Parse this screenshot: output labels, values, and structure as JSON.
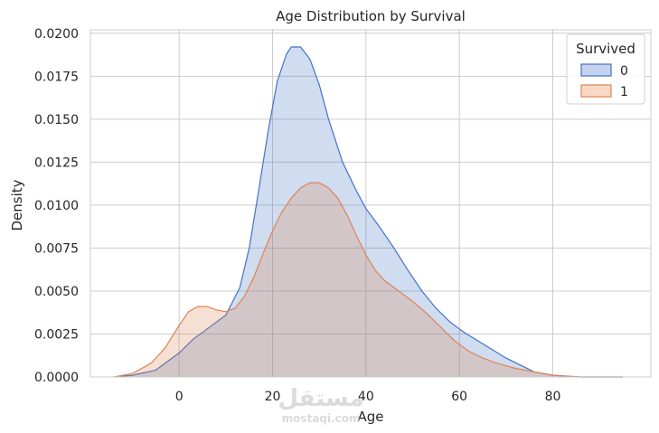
{
  "chart_data": {
    "type": "area",
    "title": "Age Distribution by Survival",
    "xlabel": "Age",
    "ylabel": "Density",
    "xlim": [
      -19,
      101
    ],
    "ylim": [
      0,
      0.0202
    ],
    "x_ticks": [
      0,
      20,
      40,
      60,
      80
    ],
    "y_ticks": [
      0.0,
      0.0025,
      0.005,
      0.0075,
      0.01,
      0.0125,
      0.015,
      0.0175,
      0.02
    ],
    "y_tick_labels": [
      "0.0000",
      "0.0025",
      "0.0050",
      "0.0075",
      "0.0100",
      "0.0125",
      "0.0150",
      "0.0175",
      "0.0200"
    ],
    "grid": true,
    "legend": {
      "title": "Survived",
      "placement": "top-right"
    },
    "series": [
      {
        "name": "0",
        "color": "#4472c4",
        "fill": "#c4d2ee",
        "points": [
          [
            -14,
            0.0
          ],
          [
            -10,
            0.0001
          ],
          [
            -5,
            0.0004
          ],
          [
            0,
            0.0014
          ],
          [
            3,
            0.0022
          ],
          [
            6,
            0.0028
          ],
          [
            10,
            0.0036
          ],
          [
            13,
            0.0052
          ],
          [
            15,
            0.0075
          ],
          [
            17,
            0.0108
          ],
          [
            19,
            0.0142
          ],
          [
            21,
            0.0172
          ],
          [
            23,
            0.0188
          ],
          [
            24,
            0.0192
          ],
          [
            26,
            0.0192
          ],
          [
            28,
            0.0185
          ],
          [
            30,
            0.017
          ],
          [
            32,
            0.015
          ],
          [
            35,
            0.0125
          ],
          [
            38,
            0.0108
          ],
          [
            40,
            0.0098
          ],
          [
            43,
            0.0087
          ],
          [
            46,
            0.0075
          ],
          [
            49,
            0.0062
          ],
          [
            52,
            0.005
          ],
          [
            55,
            0.004
          ],
          [
            58,
            0.0032
          ],
          [
            61,
            0.0026
          ],
          [
            64,
            0.0021
          ],
          [
            67,
            0.0016
          ],
          [
            70,
            0.0011
          ],
          [
            73,
            0.0007
          ],
          [
            76,
            0.0003
          ],
          [
            80,
            0.0001
          ],
          [
            86,
            0.0
          ],
          [
            95,
            0.0
          ]
        ]
      },
      {
        "name": "1",
        "color": "#dd8452",
        "fill": "#f9d9c5",
        "points": [
          [
            -14,
            0.0
          ],
          [
            -10,
            0.0002
          ],
          [
            -6,
            0.0008
          ],
          [
            -3,
            0.0017
          ],
          [
            0,
            0.003
          ],
          [
            2,
            0.0038
          ],
          [
            4,
            0.0041
          ],
          [
            6,
            0.0041
          ],
          [
            8,
            0.0039
          ],
          [
            10,
            0.0038
          ],
          [
            12,
            0.004
          ],
          [
            14,
            0.0047
          ],
          [
            16,
            0.0058
          ],
          [
            18,
            0.0072
          ],
          [
            20,
            0.0085
          ],
          [
            22,
            0.0096
          ],
          [
            24,
            0.0104
          ],
          [
            26,
            0.011
          ],
          [
            28,
            0.0113
          ],
          [
            30,
            0.0113
          ],
          [
            32,
            0.011
          ],
          [
            34,
            0.0104
          ],
          [
            36,
            0.0094
          ],
          [
            38,
            0.0082
          ],
          [
            40,
            0.0071
          ],
          [
            42,
            0.0062
          ],
          [
            44,
            0.0056
          ],
          [
            47,
            0.005
          ],
          [
            50,
            0.0044
          ],
          [
            53,
            0.0037
          ],
          [
            56,
            0.0029
          ],
          [
            59,
            0.0021
          ],
          [
            62,
            0.0015
          ],
          [
            65,
            0.0011
          ],
          [
            68,
            0.0008
          ],
          [
            72,
            0.0005
          ],
          [
            76,
            0.0003
          ],
          [
            80,
            0.0001
          ],
          [
            85,
            0.0
          ],
          [
            95,
            0.0
          ]
        ]
      }
    ]
  },
  "watermark": {
    "arabic": "مستقل",
    "latin": "mostaqi.com"
  }
}
